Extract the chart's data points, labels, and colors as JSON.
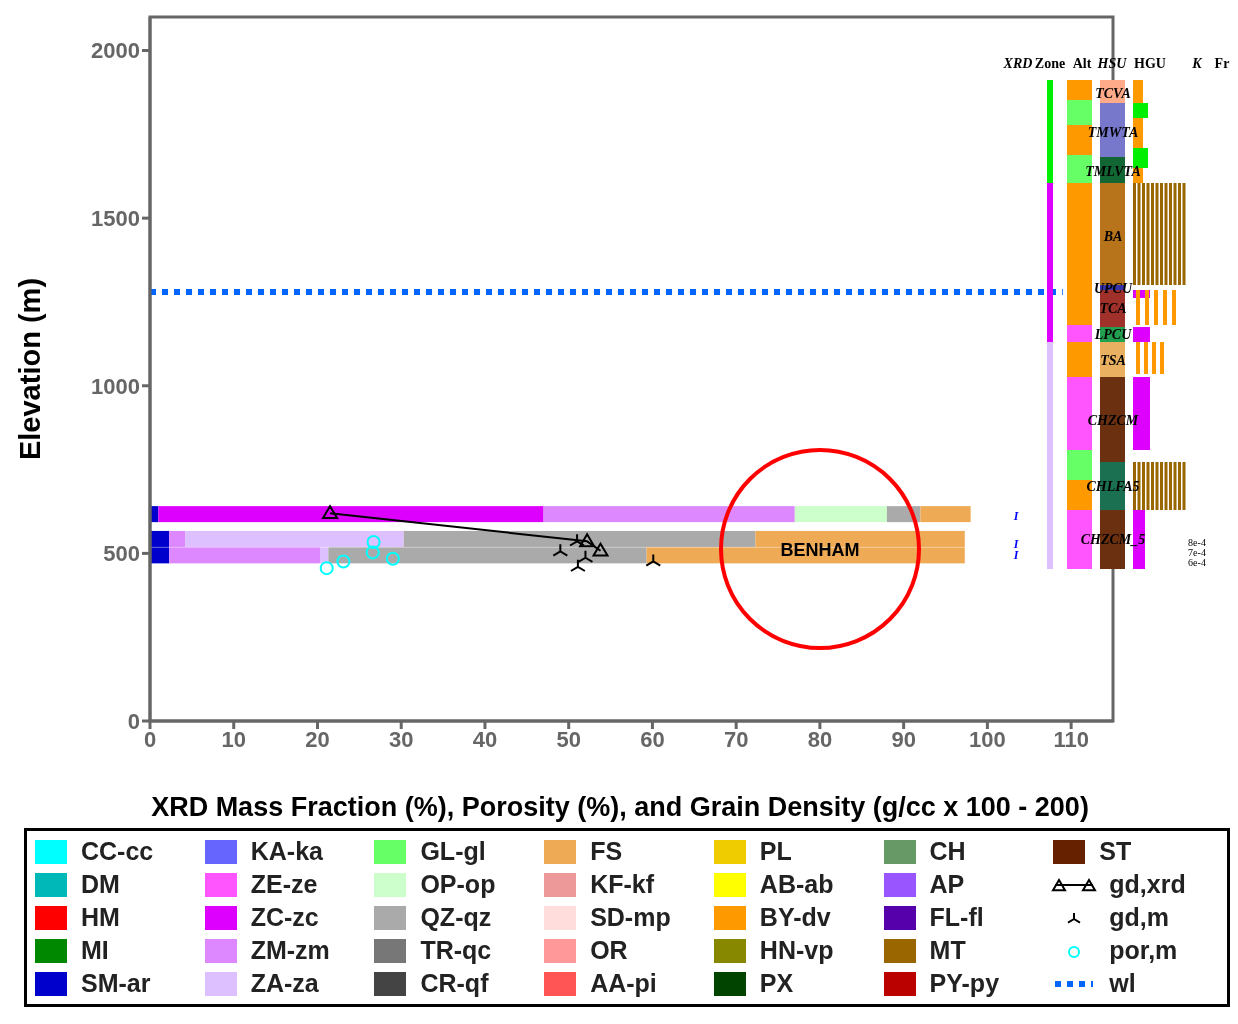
{
  "chart_data": {
    "type": "bar",
    "orientation": "horizontal",
    "stacked": true,
    "xlabel": "XRD Mass Fraction (%), Porosity (%), and Grain Density (g/cc x 100 - 200)",
    "ylabel": "Elevation (m)",
    "x": [
      617,
      543,
      494
    ],
    "xlim": [
      0,
      115
    ],
    "xticks": [
      0,
      10,
      20,
      30,
      40,
      50,
      60,
      70,
      80,
      90,
      100,
      110
    ],
    "ylim": [
      0,
      2100
    ],
    "yticks": [
      0,
      500,
      1000,
      1500,
      2000
    ],
    "legend": "bottom",
    "series": [
      {
        "name": "CC-cc",
        "color": "#00ffff",
        "values": [
          null,
          null,
          null
        ]
      },
      {
        "name": "DM",
        "color": "#00b8b8",
        "values": [
          null,
          null,
          null
        ]
      },
      {
        "name": "HM",
        "color": "#ff0000",
        "values": [
          null,
          null,
          null
        ]
      },
      {
        "name": "MI",
        "color": "#008800",
        "values": [
          null,
          null,
          null
        ]
      },
      {
        "name": "SM-ar",
        "color": "#0000cc",
        "values": [
          1,
          2.3,
          2.3
        ]
      },
      {
        "name": "KA-ka",
        "color": "#6666ff",
        "values": [
          null,
          null,
          null
        ]
      },
      {
        "name": "ZE-ze",
        "color": "#ff55ff",
        "values": [
          null,
          null,
          null
        ]
      },
      {
        "name": "ZC-zc",
        "color": "#dd00ff",
        "values": [
          46,
          null,
          null
        ]
      },
      {
        "name": "ZM-zm",
        "color": "#dd88ff",
        "values": [
          30,
          1.9,
          18
        ]
      },
      {
        "name": "ZA-za",
        "color": "#ddc0ff",
        "values": [
          null,
          26.1,
          1
        ]
      },
      {
        "name": "GL-gl",
        "color": "#66ff66",
        "values": [
          null,
          null,
          null
        ]
      },
      {
        "name": "OP-op",
        "color": "#ccffcc",
        "values": [
          11,
          null,
          null
        ]
      },
      {
        "name": "QZ-qz",
        "color": "#aaaaaa",
        "values": [
          4,
          42,
          38
        ]
      },
      {
        "name": "TR-qc",
        "color": "#777777",
        "values": [
          null,
          null,
          null
        ]
      },
      {
        "name": "CR-qf",
        "color": "#444444",
        "values": [
          null,
          null,
          null
        ]
      },
      {
        "name": "FS",
        "color": "#eeaa55",
        "values": [
          6,
          25,
          38
        ]
      },
      {
        "name": "KF-kf",
        "color": "#ee9999",
        "values": [
          null,
          null,
          null
        ]
      },
      {
        "name": "SD-mp",
        "color": "#ffdddd",
        "values": [
          null,
          null,
          null
        ]
      },
      {
        "name": "OR",
        "color": "#ff9999",
        "values": [
          null,
          null,
          null
        ]
      },
      {
        "name": "AA-pi",
        "color": "#ff5555",
        "values": [
          null,
          null,
          null
        ]
      },
      {
        "name": "PL",
        "color": "#eecc00",
        "values": [
          null,
          null,
          null
        ]
      },
      {
        "name": "AB-ab",
        "color": "#ffff00",
        "values": [
          null,
          null,
          null
        ]
      },
      {
        "name": "BY-dv",
        "color": "#ff9900",
        "values": [
          null,
          null,
          null
        ]
      },
      {
        "name": "HN-vp",
        "color": "#888800",
        "values": [
          null,
          null,
          null
        ]
      },
      {
        "name": "PX",
        "color": "#004400",
        "values": [
          null,
          null,
          null
        ]
      },
      {
        "name": "CH",
        "color": "#669966",
        "values": [
          null,
          null,
          null
        ]
      },
      {
        "name": "AP",
        "color": "#9955ff",
        "values": [
          null,
          null,
          null
        ]
      },
      {
        "name": "FL-fl",
        "color": "#5500aa",
        "values": [
          null,
          null,
          null
        ]
      },
      {
        "name": "MT",
        "color": "#996600",
        "values": [
          null,
          null,
          null
        ]
      },
      {
        "name": "PY-py",
        "color": "#bb0000",
        "values": [
          null,
          null,
          null
        ]
      },
      {
        "name": "ST",
        "color": "#662200",
        "values": [
          null,
          null,
          null
        ]
      },
      {
        "name": "gd,xrd",
        "type": "line",
        "marker": "triangle",
        "line_style": "solid",
        "color": "#000000",
        "x": [
          620,
          536,
          508
        ],
        "values": [
          21.5,
          52.2,
          53.8
        ]
      },
      {
        "name": "gd,m",
        "type": "scatter",
        "marker": "cross",
        "color": "#000000",
        "x": [
          536,
          506,
          487,
          460,
          476
        ],
        "values": [
          51.0,
          49.0,
          52.0,
          51.1,
          60.1
        ]
      },
      {
        "name": "por,m",
        "type": "scatter",
        "marker": "circle",
        "color": "#00ffff",
        "x": [
          456,
          476,
          534,
          503,
          484
        ],
        "values": [
          21.1,
          23.1,
          26.7,
          26.6,
          29.0
        ]
      },
      {
        "name": "wl",
        "type": "line",
        "marker": "none",
        "line_style": "dotted",
        "color": "#0066ff",
        "x": [
          1280,
          1280
        ],
        "values": [
          0,
          109
        ]
      }
    ],
    "annotations": [
      "XRD",
      "Zone",
      "Alt",
      "HSU",
      "HGU",
      "K",
      "Fr",
      "8e-4",
      "7e-4",
      "6e-4",
      "BENHAM",
      "I",
      "I",
      "I",
      "TCVA",
      "TMWTA",
      "TMLVTA",
      "BA",
      "UPCU",
      "TCA",
      "LPCU",
      "TSA",
      "CHZCM",
      "CHLFA5",
      "CHZCM_5"
    ]
  }
}
